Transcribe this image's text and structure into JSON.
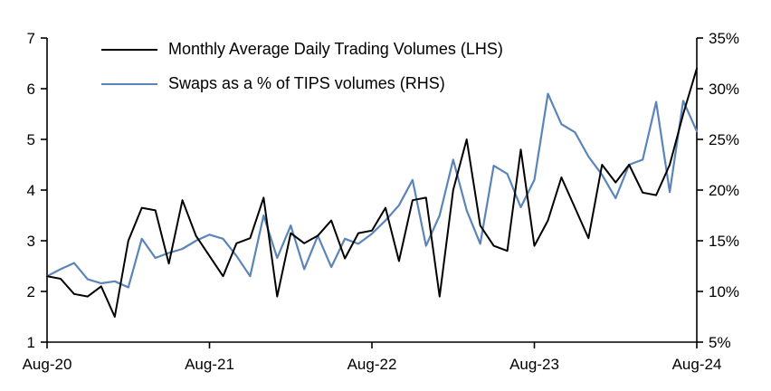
{
  "page": {
    "background": "#ffffff",
    "text_color": "#000000"
  },
  "chart_data": {
    "type": "line",
    "title": "",
    "xlabel": "",
    "ylabel_left": "",
    "ylabel_right": "",
    "grid": false,
    "legend_position": "top-left-inside",
    "categories": [
      "Aug-20",
      "Sep-20",
      "Oct-20",
      "Nov-20",
      "Dec-20",
      "Jan-21",
      "Feb-21",
      "Mar-21",
      "Apr-21",
      "May-21",
      "Jun-21",
      "Jul-21",
      "Aug-21",
      "Sep-21",
      "Oct-21",
      "Nov-21",
      "Dec-21",
      "Jan-22",
      "Feb-22",
      "Mar-22",
      "Apr-22",
      "May-22",
      "Jun-22",
      "Jul-22",
      "Aug-22",
      "Sep-22",
      "Oct-22",
      "Nov-22",
      "Dec-22",
      "Jan-23",
      "Feb-23",
      "Mar-23",
      "Apr-23",
      "May-23",
      "Jun-23",
      "Jul-23",
      "Aug-23",
      "Sep-23",
      "Oct-23",
      "Nov-23",
      "Dec-23",
      "Jan-24",
      "Feb-24",
      "Mar-24",
      "Apr-24",
      "May-24",
      "Jun-24",
      "Jul-24",
      "Aug-24"
    ],
    "series": [
      {
        "name": "Monthly Average Daily Trading Volumes (LHS)",
        "axis": "left",
        "color": "#000000",
        "stroke_width": 2,
        "values": [
          2.3,
          2.25,
          1.95,
          1.9,
          2.1,
          1.5,
          3.0,
          3.65,
          3.6,
          2.55,
          3.8,
          3.1,
          2.7,
          2.3,
          2.95,
          3.05,
          3.85,
          1.9,
          3.15,
          2.95,
          3.1,
          3.4,
          2.65,
          3.15,
          3.2,
          3.65,
          2.6,
          3.8,
          3.85,
          1.9,
          4.0,
          5.0,
          3.3,
          2.9,
          2.8,
          4.8,
          2.9,
          3.4,
          4.25,
          3.65,
          3.05,
          4.5,
          4.15,
          4.5,
          3.95,
          3.9,
          4.5,
          5.5,
          6.4
        ]
      },
      {
        "name": "Swaps as a % of TIPS volumes (RHS)",
        "axis": "right",
        "color": "#5b84b8",
        "stroke_width": 2.2,
        "values": [
          11.5,
          12.2,
          12.8,
          11.2,
          10.8,
          11.0,
          10.4,
          15.2,
          13.3,
          13.8,
          14.2,
          15.0,
          15.6,
          15.2,
          13.5,
          11.5,
          17.5,
          13.3,
          16.5,
          12.2,
          15.5,
          12.4,
          15.2,
          14.7,
          15.7,
          17.0,
          18.5,
          21.0,
          14.5,
          17.5,
          23.0,
          18.0,
          14.7,
          22.4,
          21.6,
          18.3,
          21.0,
          29.5,
          26.5,
          25.7,
          23.3,
          21.5,
          19.2,
          22.5,
          23.0,
          28.7,
          19.8,
          28.8,
          25.8
        ]
      }
    ],
    "left_axis": {
      "min": 1,
      "max": 7,
      "tick_values": [
        1,
        2,
        3,
        4,
        5,
        6,
        7
      ],
      "tick_labels": [
        "1",
        "2",
        "3",
        "4",
        "5",
        "6",
        "7"
      ]
    },
    "right_axis": {
      "min": 5,
      "max": 35,
      "tick_values": [
        5,
        10,
        15,
        20,
        25,
        30,
        35
      ],
      "tick_labels": [
        "5%",
        "10%",
        "15%",
        "20%",
        "25%",
        "30%",
        "35%"
      ]
    },
    "x_ticks": [
      {
        "index": 0,
        "label": "Aug-20"
      },
      {
        "index": 12,
        "label": "Aug-21"
      },
      {
        "index": 24,
        "label": "Aug-22"
      },
      {
        "index": 36,
        "label": "Aug-23"
      },
      {
        "index": 48,
        "label": "Aug-24"
      }
    ]
  }
}
